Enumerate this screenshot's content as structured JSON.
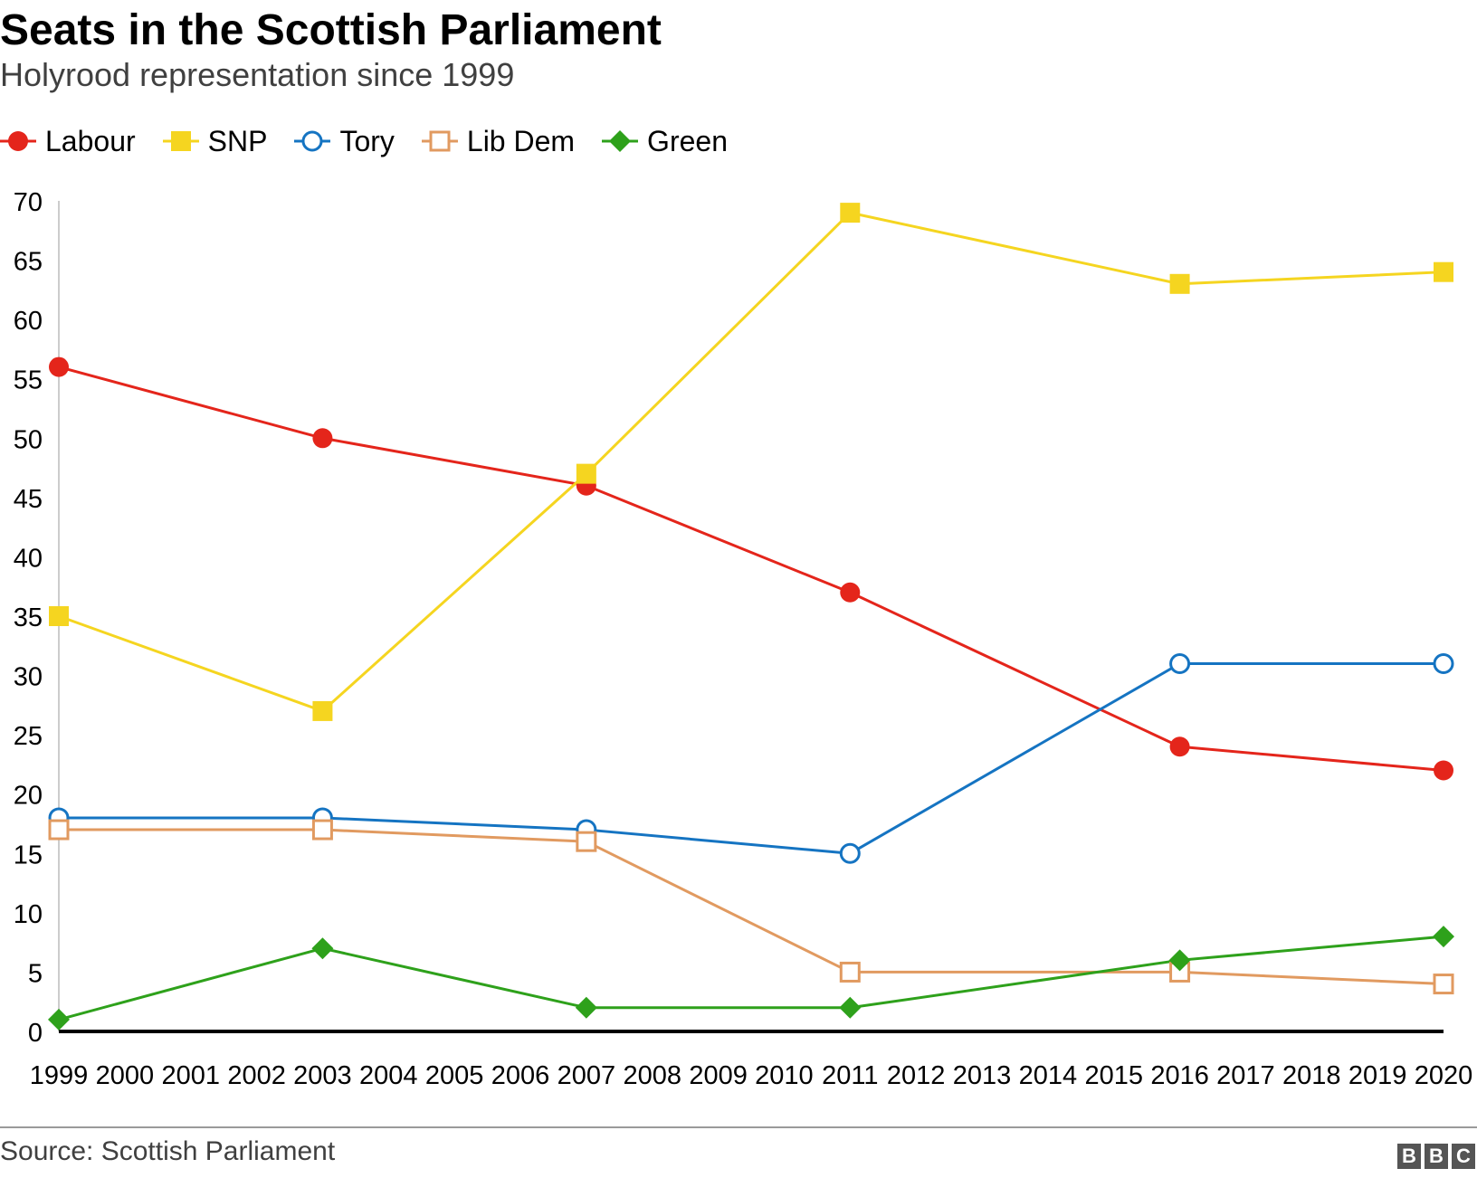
{
  "header": {
    "title": "Seats in the Scottish Parliament",
    "subtitle": "Holyrood representation since 1999"
  },
  "legend": [
    {
      "label": "Labour"
    },
    {
      "label": "SNP"
    },
    {
      "label": "Tory"
    },
    {
      "label": "Lib Dem"
    },
    {
      "label": "Green"
    }
  ],
  "footer": {
    "source": "Source: Scottish Parliament",
    "logo_letters": [
      "B",
      "B",
      "C"
    ]
  },
  "chart_data": {
    "type": "line",
    "title": "Seats in the Scottish Parliament",
    "subtitle": "Holyrood representation since 1999",
    "xlabel": "",
    "ylabel": "",
    "xlim": [
      1999,
      2020
    ],
    "ylim": [
      0,
      70
    ],
    "y_ticks": [
      0,
      5,
      10,
      15,
      20,
      25,
      30,
      35,
      40,
      45,
      50,
      55,
      60,
      65,
      70
    ],
    "x_tick_labels": [
      "1999",
      "2000",
      "2001",
      "2002",
      "2003",
      "2004",
      "2005",
      "2006",
      "2007",
      "2008",
      "2009",
      "2010",
      "2011",
      "2012",
      "2013",
      "2014",
      "2015",
      "2016",
      "2017",
      "2018",
      "2019",
      "2020"
    ],
    "grid": false,
    "legend_position": "top-left",
    "series": [
      {
        "name": "Labour",
        "color": "#e4251b",
        "marker": "filled-circle",
        "points": [
          {
            "x": 1999,
            "y": 56
          },
          {
            "x": 2003,
            "y": 50
          },
          {
            "x": 2007,
            "y": 46
          },
          {
            "x": 2011,
            "y": 37
          },
          {
            "x": 2016,
            "y": 24
          },
          {
            "x": 2020,
            "y": 22
          }
        ]
      },
      {
        "name": "SNP",
        "color": "#f5d520",
        "marker": "filled-square",
        "points": [
          {
            "x": 1999,
            "y": 35
          },
          {
            "x": 2003,
            "y": 27
          },
          {
            "x": 2007,
            "y": 47
          },
          {
            "x": 2011,
            "y": 69
          },
          {
            "x": 2016,
            "y": 63
          },
          {
            "x": 2020,
            "y": 64
          }
        ]
      },
      {
        "name": "Tory",
        "color": "#1574c2",
        "marker": "open-circle",
        "points": [
          {
            "x": 1999,
            "y": 18
          },
          {
            "x": 2003,
            "y": 18
          },
          {
            "x": 2007,
            "y": 17
          },
          {
            "x": 2011,
            "y": 15
          },
          {
            "x": 2016,
            "y": 31
          },
          {
            "x": 2020,
            "y": 31
          }
        ]
      },
      {
        "name": "Lib Dem",
        "color": "#e19a60",
        "marker": "open-square",
        "points": [
          {
            "x": 1999,
            "y": 17
          },
          {
            "x": 2003,
            "y": 17
          },
          {
            "x": 2007,
            "y": 16
          },
          {
            "x": 2011,
            "y": 5
          },
          {
            "x": 2016,
            "y": 5
          },
          {
            "x": 2020,
            "y": 4
          }
        ]
      },
      {
        "name": "Green",
        "color": "#2ea11b",
        "marker": "filled-diamond",
        "points": [
          {
            "x": 1999,
            "y": 1
          },
          {
            "x": 2003,
            "y": 7
          },
          {
            "x": 2007,
            "y": 2
          },
          {
            "x": 2011,
            "y": 2
          },
          {
            "x": 2016,
            "y": 6
          },
          {
            "x": 2020,
            "y": 8
          }
        ]
      }
    ]
  }
}
